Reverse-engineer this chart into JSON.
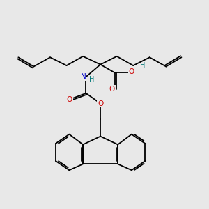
{
  "bg_color": "#e8e8e8",
  "atom_colors": {
    "O": "#cc0000",
    "N": "#0000cc",
    "H_on_O": "#007777",
    "C": "#000000"
  },
  "bond_color": "#000000",
  "bond_lw": 1.3,
  "fig_width": 3.0,
  "fig_height": 3.0,
  "dpi": 100,
  "xlim": [
    0,
    10
  ],
  "ylim": [
    0,
    10
  ]
}
